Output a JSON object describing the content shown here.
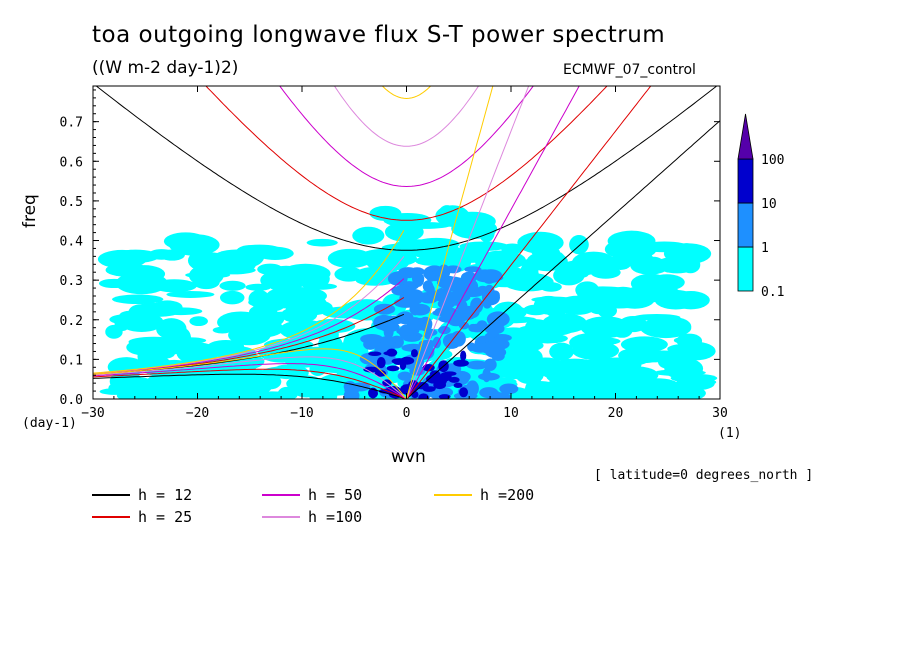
{
  "chart_data": {
    "type": "heatmap",
    "title": "toa outgoing longwave flux S-T power spectrum",
    "subtitle": "((W m-2 day-1)2)",
    "experiment": "ECMWF_07_control",
    "xlabel": "wvn",
    "ylabel": "freq",
    "x_unit": "(1)",
    "y_unit": "(day-1)",
    "xlim": [
      -30,
      30
    ],
    "ylim": [
      0,
      0.79
    ],
    "x_ticks": [
      -30,
      -20,
      -10,
      0,
      10,
      20,
      30
    ],
    "x_tick_labels": [
      "−30",
      "−20",
      "−10",
      "0",
      "10",
      "20",
      "30"
    ],
    "y_ticks": [
      0.0,
      0.1,
      0.2,
      0.3,
      0.4,
      0.5,
      0.6,
      0.7
    ],
    "y_tick_labels": [
      "0.0",
      "0.1",
      "0.2",
      "0.3",
      "0.4",
      "0.5",
      "0.6",
      "0.7"
    ],
    "note": "[ latitude=0 degrees_north ]",
    "colorbar": {
      "labels": [
        "0.1",
        "1",
        "10",
        "100"
      ],
      "levels": [
        0.1,
        1,
        10,
        100
      ],
      "colors": [
        "#00ffff",
        "#1e90ff",
        "#0000cd",
        "#5500aa"
      ]
    },
    "dispersion_curves": [
      {
        "label": "h = 12",
        "h": 12,
        "color": "#000000"
      },
      {
        "label": "h = 25",
        "h": 25,
        "color": "#e00000"
      },
      {
        "label": "h = 50",
        "h": 50,
        "color": "#cc00cc"
      },
      {
        "label": "h =100",
        "h": 100,
        "color": "#dd88dd"
      },
      {
        "label": "h =200",
        "h": 200,
        "color": "#ffcc00"
      }
    ],
    "power_regions": [
      {
        "level": 0.1,
        "wvn": [
          -28,
          28
        ],
        "freq": [
          0.0,
          0.4
        ],
        "desc": "broad background"
      },
      {
        "level": 1,
        "wvn": [
          -6,
          10
        ],
        "freq": [
          0.0,
          0.33
        ]
      },
      {
        "level": 10,
        "wvn": [
          -3,
          6
        ],
        "freq": [
          0.0,
          0.12
        ]
      }
    ]
  }
}
